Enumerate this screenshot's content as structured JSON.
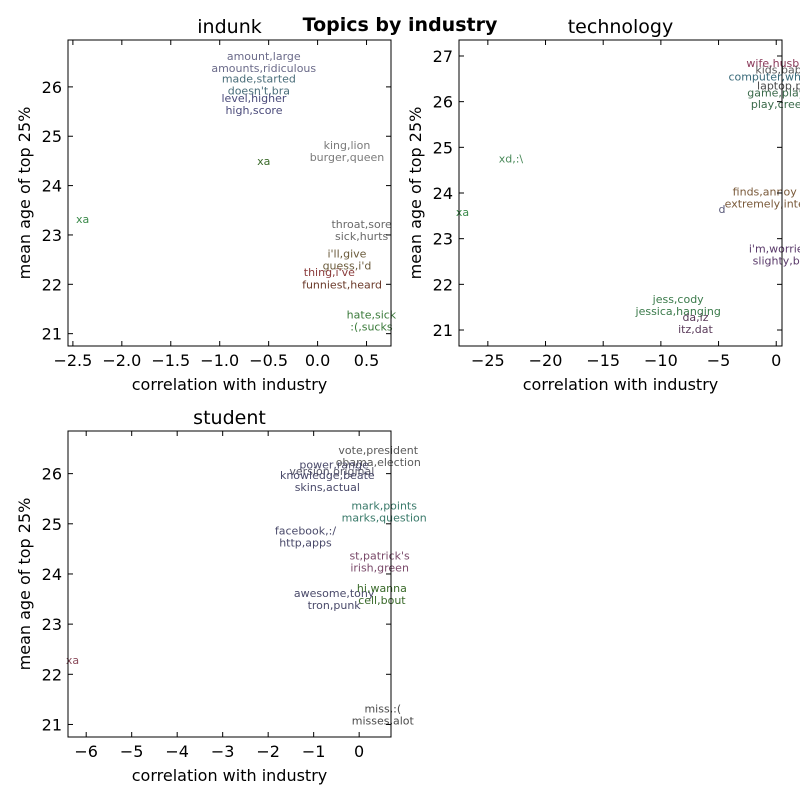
{
  "figure_title": "Topics by industry",
  "chart_data": [
    {
      "type": "scatter",
      "title": "indunk",
      "xlabel": "correlation with industry",
      "ylabel": "mean age of top 25%",
      "xlim": [
        -2.55,
        0.75
      ],
      "ylim": [
        20.75,
        26.95
      ],
      "xticks": [
        -2.5,
        -2.0,
        -1.5,
        -1.0,
        -0.5,
        0.0,
        0.5
      ],
      "xtick_labels": [
        "−2.5",
        "−2.0",
        "−1.5",
        "−1.0",
        "−0.5",
        "0.0",
        "0.5"
      ],
      "yticks": [
        21,
        22,
        23,
        24,
        25,
        26
      ],
      "ytick_labels": [
        "21",
        "22",
        "23",
        "24",
        "25",
        "26"
      ],
      "points": [
        {
          "x": -0.55,
          "y": 26.5,
          "lines": [
            "amount,large",
            "amounts,ridiculous"
          ],
          "color": "#6b6b8a"
        },
        {
          "x": -0.6,
          "y": 26.05,
          "lines": [
            "made,started",
            "doesn't,bra"
          ],
          "color": "#4a6e7a"
        },
        {
          "x": -0.65,
          "y": 25.65,
          "lines": [
            "level,higher",
            "high,score"
          ],
          "color": "#4a4a7a"
        },
        {
          "x": 0.3,
          "y": 24.7,
          "lines": [
            "king,lion",
            "burger,queen"
          ],
          "color": "#7a7a7a"
        },
        {
          "x": -0.55,
          "y": 24.5,
          "lines": [
            "xa"
          ],
          "color": "#3a6a2a"
        },
        {
          "x": -2.4,
          "y": 23.32,
          "lines": [
            "xa"
          ],
          "color": "#3a8a4a"
        },
        {
          "x": 0.45,
          "y": 23.1,
          "lines": [
            "throat,sore",
            "sick,hurts"
          ],
          "color": "#6a6a6a"
        },
        {
          "x": 0.3,
          "y": 22.5,
          "lines": [
            "i'll,give",
            "guess,i'd"
          ],
          "color": "#6a5a3a"
        },
        {
          "x": 0.12,
          "y": 22.25,
          "lines": [
            "thing,i've"
          ],
          "color": "#8a3a3a"
        },
        {
          "x": 0.25,
          "y": 22.0,
          "lines": [
            "funniest,heard"
          ],
          "color": "#6a3a2a"
        },
        {
          "x": 0.55,
          "y": 21.27,
          "lines": [
            "hate,sick",
            ":(,sucks"
          ],
          "color": "#3a7a3a"
        }
      ]
    },
    {
      "type": "scatter",
      "title": "technology",
      "xlabel": "correlation with industry",
      "ylabel": "mean age of top 25%",
      "xlim": [
        -27.5,
        0.5
      ],
      "ylim": [
        20.65,
        27.35
      ],
      "xticks": [
        -25,
        -20,
        -15,
        -10,
        -5,
        0
      ],
      "xtick_labels": [
        "−25",
        "−20",
        "−15",
        "−10",
        "−5",
        "0"
      ],
      "yticks": [
        21,
        22,
        23,
        24,
        25,
        26,
        27
      ],
      "ytick_labels": [
        "21",
        "22",
        "23",
        "24",
        "25",
        "26",
        "27"
      ],
      "points": [
        {
          "x": 0.0,
          "y": 26.85,
          "lines": [
            "wife,husba"
          ],
          "color": "#8a3a5a"
        },
        {
          "x": 0.2,
          "y": 26.7,
          "lines": [
            "kids,bab"
          ],
          "color": "#5a5a5a"
        },
        {
          "x": -1.0,
          "y": 26.55,
          "lines": [
            "computer,wh"
          ],
          "color": "#3a6a7a"
        },
        {
          "x": 0.3,
          "y": 26.35,
          "lines": [
            "laptop,p"
          ],
          "color": "#4a4a4a"
        },
        {
          "x": 0.0,
          "y": 26.2,
          "lines": [
            "game,play"
          ],
          "color": "#3a6a4a"
        },
        {
          "x": 0.0,
          "y": 25.95,
          "lines": [
            "play,cree"
          ],
          "color": "#3a6a4a"
        },
        {
          "x": -23.0,
          "y": 24.75,
          "lines": [
            "xd,:\\"
          ],
          "color": "#4a8a5a"
        },
        {
          "x": -1.0,
          "y": 23.9,
          "lines": [
            "finds,annoy",
            "extremely,inte"
          ],
          "color": "#7a5a3a"
        },
        {
          "x": -4.7,
          "y": 23.65,
          "lines": [
            "d"
          ],
          "color": "#5a5a7a"
        },
        {
          "x": -27.2,
          "y": 23.58,
          "lines": [
            "xa"
          ],
          "color": "#3a8a4a"
        },
        {
          "x": 0.0,
          "y": 22.65,
          "lines": [
            "i'm,worrie",
            "slighty,b"
          ],
          "color": "#5a3a6a"
        },
        {
          "x": -8.5,
          "y": 21.55,
          "lines": [
            "jess,cody",
            "jessica,hanging"
          ],
          "color": "#3a7a4a"
        },
        {
          "x": -7.0,
          "y": 21.15,
          "lines": [
            "da,iz",
            "itz,dat"
          ],
          "color": "#5a3a5a"
        }
      ]
    },
    {
      "type": "scatter",
      "title": "student",
      "xlabel": "correlation with industry",
      "ylabel": "mean age of top 25%",
      "xlim": [
        -6.4,
        0.7
      ],
      "ylim": [
        20.75,
        26.85
      ],
      "xticks": [
        -6,
        -5,
        -4,
        -3,
        -2,
        -1,
        0
      ],
      "xtick_labels": [
        "−6",
        "−5",
        "−4",
        "−3",
        "−2",
        "−1",
        "0"
      ],
      "yticks": [
        21,
        22,
        23,
        24,
        25,
        26
      ],
      "ytick_labels": [
        "21",
        "22",
        "23",
        "24",
        "25",
        "26"
      ],
      "points": [
        {
          "x": 0.42,
          "y": 26.35,
          "lines": [
            "vote,president",
            "obama,election"
          ],
          "color": "#5a5a5a"
        },
        {
          "x": -0.55,
          "y": 26.18,
          "lines": [
            "power,range"
          ],
          "color": "#4a4a6a"
        },
        {
          "x": -0.6,
          "y": 26.05,
          "lines": [
            "version,original"
          ],
          "color": "#5a5a6a"
        },
        {
          "x": -0.7,
          "y": 25.85,
          "lines": [
            "knowledge,beate",
            "skins,actual"
          ],
          "color": "#4a4a6a"
        },
        {
          "x": 0.55,
          "y": 25.25,
          "lines": [
            "mark,points",
            "marks,question"
          ],
          "color": "#3a7a6a"
        },
        {
          "x": -1.18,
          "y": 24.75,
          "lines": [
            "facebook,:/",
            "http,apps"
          ],
          "color": "#4a4a6a"
        },
        {
          "x": 0.45,
          "y": 24.25,
          "lines": [
            "st,patrick's",
            "irish,green"
          ],
          "color": "#7a4a6a"
        },
        {
          "x": -0.55,
          "y": 23.5,
          "lines": [
            "awesome,tony",
            "tron,punk"
          ],
          "color": "#4a4a6a"
        },
        {
          "x": 0.5,
          "y": 23.6,
          "lines": [
            "hi,wanna",
            "cell,bout"
          ],
          "color": "#3a6a2a"
        },
        {
          "x": -6.3,
          "y": 22.28,
          "lines": [
            "xa"
          ],
          "color": "#8a4a5a"
        },
        {
          "x": 0.52,
          "y": 21.2,
          "lines": [
            "miss,:(",
            "misses,alot"
          ],
          "color": "#4a4a4a"
        }
      ]
    }
  ]
}
